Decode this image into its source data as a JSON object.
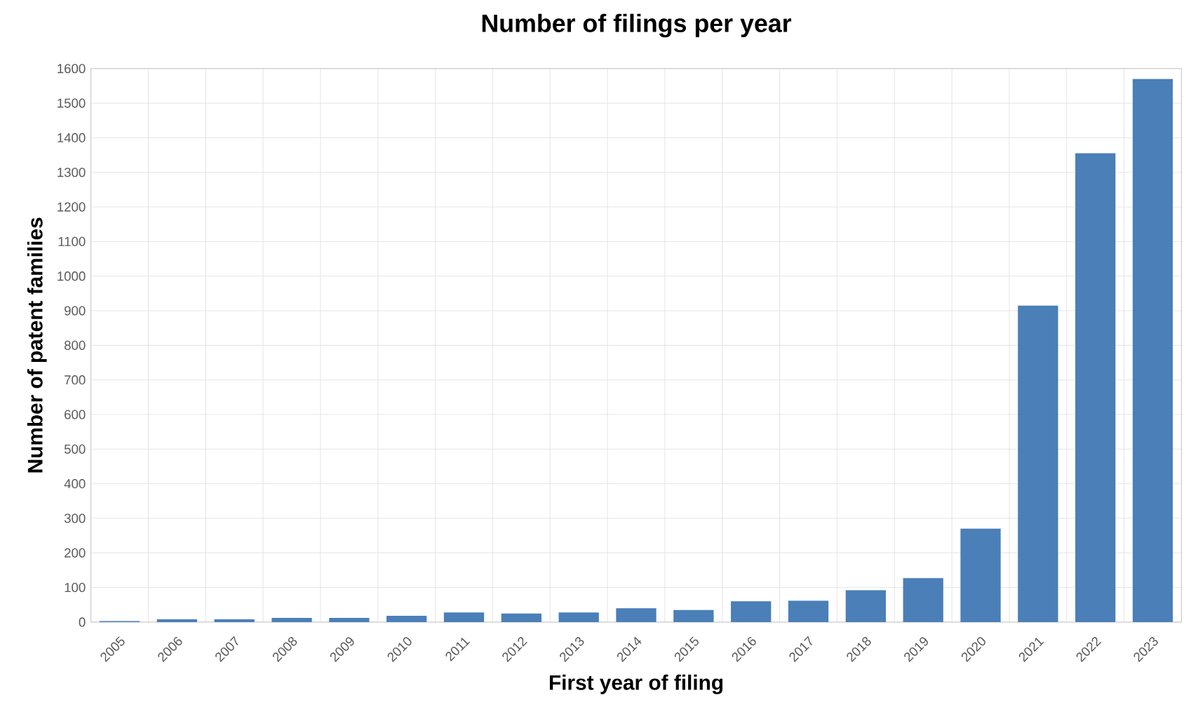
{
  "chart_data": {
    "type": "bar",
    "title": "Number of filings per year",
    "xlabel": "First year of filing",
    "ylabel": "Number of patent families",
    "categories": [
      "2005",
      "2006",
      "2007",
      "2008",
      "2009",
      "2010",
      "2011",
      "2012",
      "2013",
      "2014",
      "2015",
      "2016",
      "2017",
      "2018",
      "2019",
      "2020",
      "2021",
      "2022",
      "2023"
    ],
    "values": [
      3,
      8,
      8,
      12,
      12,
      18,
      28,
      25,
      28,
      40,
      35,
      60,
      62,
      92,
      127,
      270,
      915,
      1355,
      1570
    ],
    "color": "#4a7fb8",
    "ylim": [
      0,
      1600
    ],
    "yticks": [
      0,
      100,
      200,
      300,
      400,
      500,
      600,
      700,
      800,
      900,
      1000,
      1100,
      1200,
      1300,
      1400,
      1500,
      1600
    ],
    "grid": true
  }
}
